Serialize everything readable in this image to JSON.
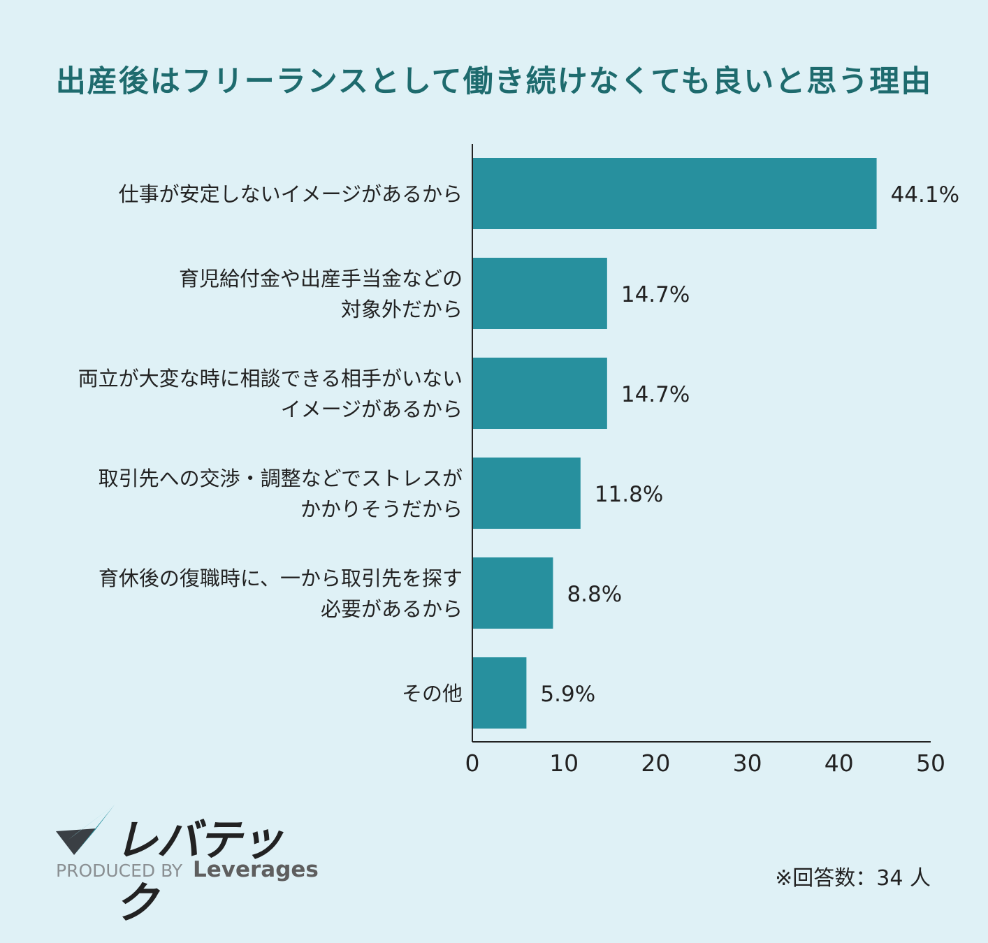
{
  "title": "出産後はフリーランスとして働き続けなくても良いと思う理由",
  "chart_data": {
    "type": "bar",
    "orientation": "horizontal",
    "categories": [
      [
        "仕事が安定しないイメージがあるから"
      ],
      [
        "育児給付金や出産手当金などの",
        "対象外だから"
      ],
      [
        "両立が大変な時に相談できる相手がいない",
        "イメージがあるから"
      ],
      [
        "取引先への交渉・調整などでストレスが",
        "かかりそうだから"
      ],
      [
        "育休後の復職時に、一から取引先を探す",
        "必要があるから"
      ],
      [
        "その他"
      ]
    ],
    "values": [
      44.1,
      14.7,
      14.7,
      11.8,
      8.8,
      5.9
    ],
    "value_labels": [
      "44.1%",
      "14.7%",
      "14.7%",
      "11.8%",
      "8.8%",
      "5.9%"
    ],
    "xlim": [
      0,
      50
    ],
    "xticks": [
      0,
      10,
      20,
      30,
      40,
      50
    ],
    "grid": false,
    "legend": "none",
    "colors": {
      "bar": "#27909e",
      "axis": "#222222",
      "text": "#222222"
    }
  },
  "logo": {
    "text": "レバテック",
    "produced_by": "PRODUCED BY",
    "brand": "Leverages"
  },
  "note": "※回答数：34 人"
}
